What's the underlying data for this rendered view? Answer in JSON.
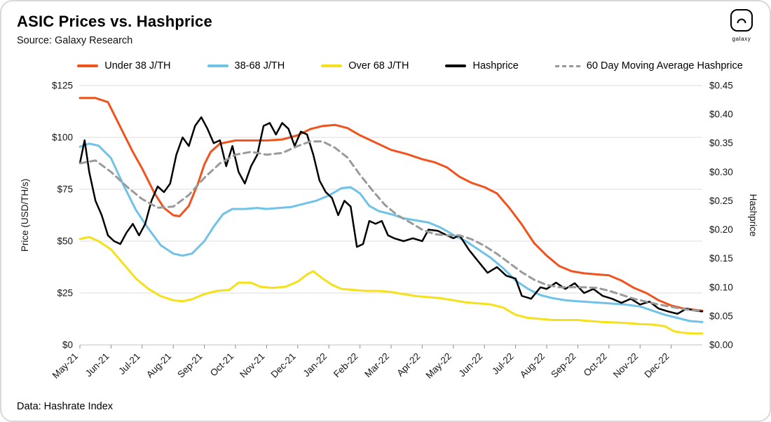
{
  "header": {
    "title": "ASIC Prices vs. Hashprice",
    "source": "Source: Galaxy Research",
    "logo_text": "galaxy"
  },
  "footer": {
    "note": "Data: Hashrate Index"
  },
  "chart_data": {
    "type": "line",
    "title": "ASIC Prices vs. Hashprice",
    "subtitle": "Source: Galaxy Research",
    "legend_position": "top",
    "grid": "horizontal",
    "x_axis": {
      "tick_labels": [
        "May-21",
        "Jun-21",
        "Jul-21",
        "Aug-21",
        "Sep-21",
        "Oct-21",
        "Nov-21",
        "Dec-21",
        "Jan-22",
        "Feb-22",
        "Mar-22",
        "Apr-22",
        "May-22",
        "Jun-22",
        "Jul-22",
        "Aug-22",
        "Sep-22",
        "Oct-22",
        "Nov-22",
        "Dec-22"
      ],
      "range": [
        0,
        20
      ]
    },
    "y_left": {
      "label": "Price (USD/TH/s)",
      "range": [
        0,
        125
      ],
      "ticks": [
        0,
        25,
        50,
        75,
        100,
        125
      ],
      "tick_labels": [
        "$0",
        "$25",
        "$50",
        "$75",
        "$100",
        "$125"
      ]
    },
    "y_right": {
      "label": "Hashprice",
      "range": [
        0,
        0.45
      ],
      "ticks": [
        0,
        0.05,
        0.1,
        0.15,
        0.2,
        0.25,
        0.3,
        0.35,
        0.4,
        0.45
      ],
      "tick_labels": [
        "$0.00",
        "$0.05",
        "$0.10",
        "$0.15",
        "$0.20",
        "$0.25",
        "$0.30",
        "$0.35",
        "$0.40",
        "$0.45"
      ]
    },
    "series": [
      {
        "name": "Under 38 J/TH",
        "color": "#F1531D",
        "axis": "left",
        "style": "solid",
        "width": 3,
        "points": [
          [
            0,
            119
          ],
          [
            0.5,
            119
          ],
          [
            0.9,
            117
          ],
          [
            1.3,
            105
          ],
          [
            1.7,
            93
          ],
          [
            2,
            85
          ],
          [
            2.4,
            73
          ],
          [
            2.7,
            66
          ],
          [
            3,
            62.5
          ],
          [
            3.2,
            62
          ],
          [
            3.5,
            67
          ],
          [
            3.8,
            78
          ],
          [
            4,
            87
          ],
          [
            4.2,
            93
          ],
          [
            4.5,
            97
          ],
          [
            5,
            98.5
          ],
          [
            5.5,
            98.5
          ],
          [
            6,
            98.5
          ],
          [
            6.5,
            99
          ],
          [
            7,
            101
          ],
          [
            7.4,
            104
          ],
          [
            7.8,
            105.5
          ],
          [
            8.2,
            106
          ],
          [
            8.6,
            104.5
          ],
          [
            9,
            101
          ],
          [
            9.5,
            97.5
          ],
          [
            10,
            94
          ],
          [
            10.5,
            92
          ],
          [
            11,
            89.5
          ],
          [
            11.4,
            88
          ],
          [
            11.8,
            85.5
          ],
          [
            12.2,
            81
          ],
          [
            12.6,
            78
          ],
          [
            13,
            76
          ],
          [
            13.4,
            73
          ],
          [
            13.8,
            66
          ],
          [
            14.2,
            58
          ],
          [
            14.6,
            49
          ],
          [
            15,
            43
          ],
          [
            15.4,
            38
          ],
          [
            15.8,
            35.5
          ],
          [
            16.2,
            34.5
          ],
          [
            16.6,
            34
          ],
          [
            17,
            33.5
          ],
          [
            17.4,
            31
          ],
          [
            17.8,
            27.5
          ],
          [
            18.2,
            25
          ],
          [
            18.6,
            21.5
          ],
          [
            19,
            19
          ],
          [
            19.4,
            17.5
          ],
          [
            19.7,
            17
          ],
          [
            20,
            16.5
          ]
        ]
      },
      {
        "name": "38-68 J/TH",
        "color": "#6FC2E8",
        "axis": "left",
        "style": "solid",
        "width": 3,
        "points": [
          [
            0,
            95.5
          ],
          [
            0.3,
            97
          ],
          [
            0.6,
            96
          ],
          [
            1,
            90
          ],
          [
            1.4,
            77
          ],
          [
            1.8,
            65
          ],
          [
            2.2,
            56
          ],
          [
            2.6,
            48
          ],
          [
            3,
            44
          ],
          [
            3.3,
            43
          ],
          [
            3.6,
            44
          ],
          [
            4,
            50
          ],
          [
            4.3,
            57
          ],
          [
            4.6,
            63
          ],
          [
            4.9,
            65.5
          ],
          [
            5.3,
            65.5
          ],
          [
            5.7,
            66
          ],
          [
            6,
            65.5
          ],
          [
            6.4,
            66
          ],
          [
            6.8,
            66.5
          ],
          [
            7.2,
            68
          ],
          [
            7.6,
            69.5
          ],
          [
            8,
            72
          ],
          [
            8.4,
            75.5
          ],
          [
            8.7,
            76
          ],
          [
            9,
            73
          ],
          [
            9.3,
            67
          ],
          [
            9.6,
            64.5
          ],
          [
            10,
            63
          ],
          [
            10.4,
            61
          ],
          [
            10.8,
            60
          ],
          [
            11.2,
            59
          ],
          [
            11.6,
            56.5
          ],
          [
            12,
            53
          ],
          [
            12.4,
            50
          ],
          [
            12.8,
            46
          ],
          [
            13.2,
            42
          ],
          [
            13.6,
            37
          ],
          [
            14,
            31
          ],
          [
            14.4,
            27
          ],
          [
            14.8,
            24
          ],
          [
            15.2,
            22.5
          ],
          [
            15.6,
            21.5
          ],
          [
            16,
            21
          ],
          [
            16.5,
            20.5
          ],
          [
            17,
            20
          ],
          [
            17.5,
            19.5
          ],
          [
            18,
            18.5
          ],
          [
            18.4,
            16.5
          ],
          [
            18.8,
            14.5
          ],
          [
            19.2,
            13
          ],
          [
            19.6,
            11.5
          ],
          [
            20,
            11
          ]
        ]
      },
      {
        "name": "Over 68 J/TH",
        "color": "#F4E11B",
        "axis": "left",
        "style": "solid",
        "width": 3,
        "points": [
          [
            0,
            51
          ],
          [
            0.3,
            52
          ],
          [
            0.6,
            50
          ],
          [
            1,
            46
          ],
          [
            1.4,
            39
          ],
          [
            1.8,
            32
          ],
          [
            2.2,
            27
          ],
          [
            2.6,
            23.5
          ],
          [
            3,
            21.5
          ],
          [
            3.3,
            21
          ],
          [
            3.6,
            22
          ],
          [
            4,
            24.5
          ],
          [
            4.4,
            26
          ],
          [
            4.8,
            26.5
          ],
          [
            5.1,
            30
          ],
          [
            5.5,
            30
          ],
          [
            5.8,
            28
          ],
          [
            6.2,
            27.5
          ],
          [
            6.6,
            28
          ],
          [
            7,
            30.5
          ],
          [
            7.3,
            34
          ],
          [
            7.5,
            35.5
          ],
          [
            7.8,
            32
          ],
          [
            8.1,
            29
          ],
          [
            8.4,
            27
          ],
          [
            8.8,
            26.5
          ],
          [
            9.2,
            26
          ],
          [
            9.6,
            26
          ],
          [
            10,
            25.5
          ],
          [
            10.4,
            24.5
          ],
          [
            10.8,
            23.5
          ],
          [
            11.2,
            23
          ],
          [
            11.6,
            22.5
          ],
          [
            12,
            21.5
          ],
          [
            12.4,
            20.5
          ],
          [
            12.8,
            20
          ],
          [
            13.2,
            19.5
          ],
          [
            13.6,
            18
          ],
          [
            14,
            14.5
          ],
          [
            14.4,
            13
          ],
          [
            14.8,
            12.5
          ],
          [
            15.2,
            12
          ],
          [
            15.6,
            12
          ],
          [
            16,
            12
          ],
          [
            16.4,
            11.5
          ],
          [
            16.8,
            11
          ],
          [
            17.2,
            10.8
          ],
          [
            17.6,
            10.5
          ],
          [
            18,
            10
          ],
          [
            18.4,
            9.8
          ],
          [
            18.8,
            9
          ],
          [
            19.1,
            6.5
          ],
          [
            19.4,
            5.8
          ],
          [
            19.7,
            5.5
          ],
          [
            20,
            5.5
          ]
        ]
      },
      {
        "name": "Hashprice",
        "color": "#000000",
        "axis": "right",
        "style": "solid",
        "width": 2.5,
        "points": [
          [
            0,
            0.315
          ],
          [
            0.15,
            0.355
          ],
          [
            0.3,
            0.3
          ],
          [
            0.5,
            0.25
          ],
          [
            0.7,
            0.225
          ],
          [
            0.9,
            0.19
          ],
          [
            1.1,
            0.18
          ],
          [
            1.3,
            0.175
          ],
          [
            1.5,
            0.195
          ],
          [
            1.7,
            0.21
          ],
          [
            1.9,
            0.19
          ],
          [
            2.1,
            0.21
          ],
          [
            2.3,
            0.25
          ],
          [
            2.5,
            0.275
          ],
          [
            2.7,
            0.265
          ],
          [
            2.9,
            0.28
          ],
          [
            3.1,
            0.33
          ],
          [
            3.3,
            0.36
          ],
          [
            3.5,
            0.345
          ],
          [
            3.7,
            0.38
          ],
          [
            3.9,
            0.395
          ],
          [
            4.1,
            0.375
          ],
          [
            4.3,
            0.35
          ],
          [
            4.5,
            0.355
          ],
          [
            4.7,
            0.31
          ],
          [
            4.9,
            0.345
          ],
          [
            5.1,
            0.3
          ],
          [
            5.3,
            0.28
          ],
          [
            5.5,
            0.31
          ],
          [
            5.7,
            0.33
          ],
          [
            5.9,
            0.38
          ],
          [
            6.1,
            0.385
          ],
          [
            6.3,
            0.365
          ],
          [
            6.5,
            0.385
          ],
          [
            6.7,
            0.375
          ],
          [
            6.9,
            0.345
          ],
          [
            7.1,
            0.37
          ],
          [
            7.3,
            0.365
          ],
          [
            7.5,
            0.33
          ],
          [
            7.7,
            0.285
          ],
          [
            7.9,
            0.265
          ],
          [
            8.1,
            0.255
          ],
          [
            8.3,
            0.225
          ],
          [
            8.5,
            0.25
          ],
          [
            8.7,
            0.24
          ],
          [
            8.9,
            0.17
          ],
          [
            9.1,
            0.175
          ],
          [
            9.3,
            0.215
          ],
          [
            9.5,
            0.21
          ],
          [
            9.7,
            0.215
          ],
          [
            9.9,
            0.19
          ],
          [
            10.1,
            0.185
          ],
          [
            10.4,
            0.18
          ],
          [
            10.7,
            0.185
          ],
          [
            11,
            0.18
          ],
          [
            11.2,
            0.2
          ],
          [
            11.5,
            0.198
          ],
          [
            11.8,
            0.19
          ],
          [
            12,
            0.185
          ],
          [
            12.2,
            0.19
          ],
          [
            12.5,
            0.165
          ],
          [
            12.8,
            0.145
          ],
          [
            13.1,
            0.125
          ],
          [
            13.4,
            0.135
          ],
          [
            13.7,
            0.12
          ],
          [
            14,
            0.115
          ],
          [
            14.2,
            0.085
          ],
          [
            14.5,
            0.08
          ],
          [
            14.8,
            0.1
          ],
          [
            15,
            0.097
          ],
          [
            15.3,
            0.108
          ],
          [
            15.6,
            0.097
          ],
          [
            15.9,
            0.107
          ],
          [
            16.2,
            0.09
          ],
          [
            16.5,
            0.097
          ],
          [
            16.8,
            0.085
          ],
          [
            17.1,
            0.08
          ],
          [
            17.4,
            0.073
          ],
          [
            17.7,
            0.08
          ],
          [
            18,
            0.07
          ],
          [
            18.3,
            0.075
          ],
          [
            18.6,
            0.063
          ],
          [
            18.9,
            0.058
          ],
          [
            19.2,
            0.054
          ],
          [
            19.5,
            0.063
          ],
          [
            19.8,
            0.059
          ],
          [
            20,
            0.058
          ]
        ]
      },
      {
        "name": "60 Day Moving Average Hashprice",
        "color": "#9A9A9A",
        "axis": "right",
        "style": "dashed",
        "width": 3,
        "points": [
          [
            0,
            0.315
          ],
          [
            0.5,
            0.32
          ],
          [
            1,
            0.3
          ],
          [
            1.5,
            0.275
          ],
          [
            2,
            0.253
          ],
          [
            2.5,
            0.238
          ],
          [
            3,
            0.24
          ],
          [
            3.5,
            0.26
          ],
          [
            4,
            0.29
          ],
          [
            4.5,
            0.315
          ],
          [
            5,
            0.33
          ],
          [
            5.5,
            0.335
          ],
          [
            6,
            0.33
          ],
          [
            6.5,
            0.333
          ],
          [
            7,
            0.345
          ],
          [
            7.4,
            0.353
          ],
          [
            7.8,
            0.353
          ],
          [
            8.2,
            0.342
          ],
          [
            8.6,
            0.325
          ],
          [
            9,
            0.295
          ],
          [
            9.4,
            0.268
          ],
          [
            9.8,
            0.243
          ],
          [
            10.2,
            0.225
          ],
          [
            10.6,
            0.213
          ],
          [
            11,
            0.2
          ],
          [
            11.4,
            0.192
          ],
          [
            11.8,
            0.19
          ],
          [
            12.2,
            0.19
          ],
          [
            12.6,
            0.183
          ],
          [
            13,
            0.172
          ],
          [
            13.4,
            0.158
          ],
          [
            13.8,
            0.142
          ],
          [
            14.2,
            0.126
          ],
          [
            14.6,
            0.113
          ],
          [
            15,
            0.104
          ],
          [
            15.4,
            0.1
          ],
          [
            15.8,
            0.1
          ],
          [
            16.2,
            0.1
          ],
          [
            16.6,
            0.099
          ],
          [
            17,
            0.094
          ],
          [
            17.4,
            0.087
          ],
          [
            17.8,
            0.08
          ],
          [
            18.2,
            0.075
          ],
          [
            18.6,
            0.07
          ],
          [
            19,
            0.066
          ],
          [
            19.4,
            0.062
          ],
          [
            19.7,
            0.06
          ],
          [
            20,
            0.059
          ]
        ]
      }
    ]
  }
}
